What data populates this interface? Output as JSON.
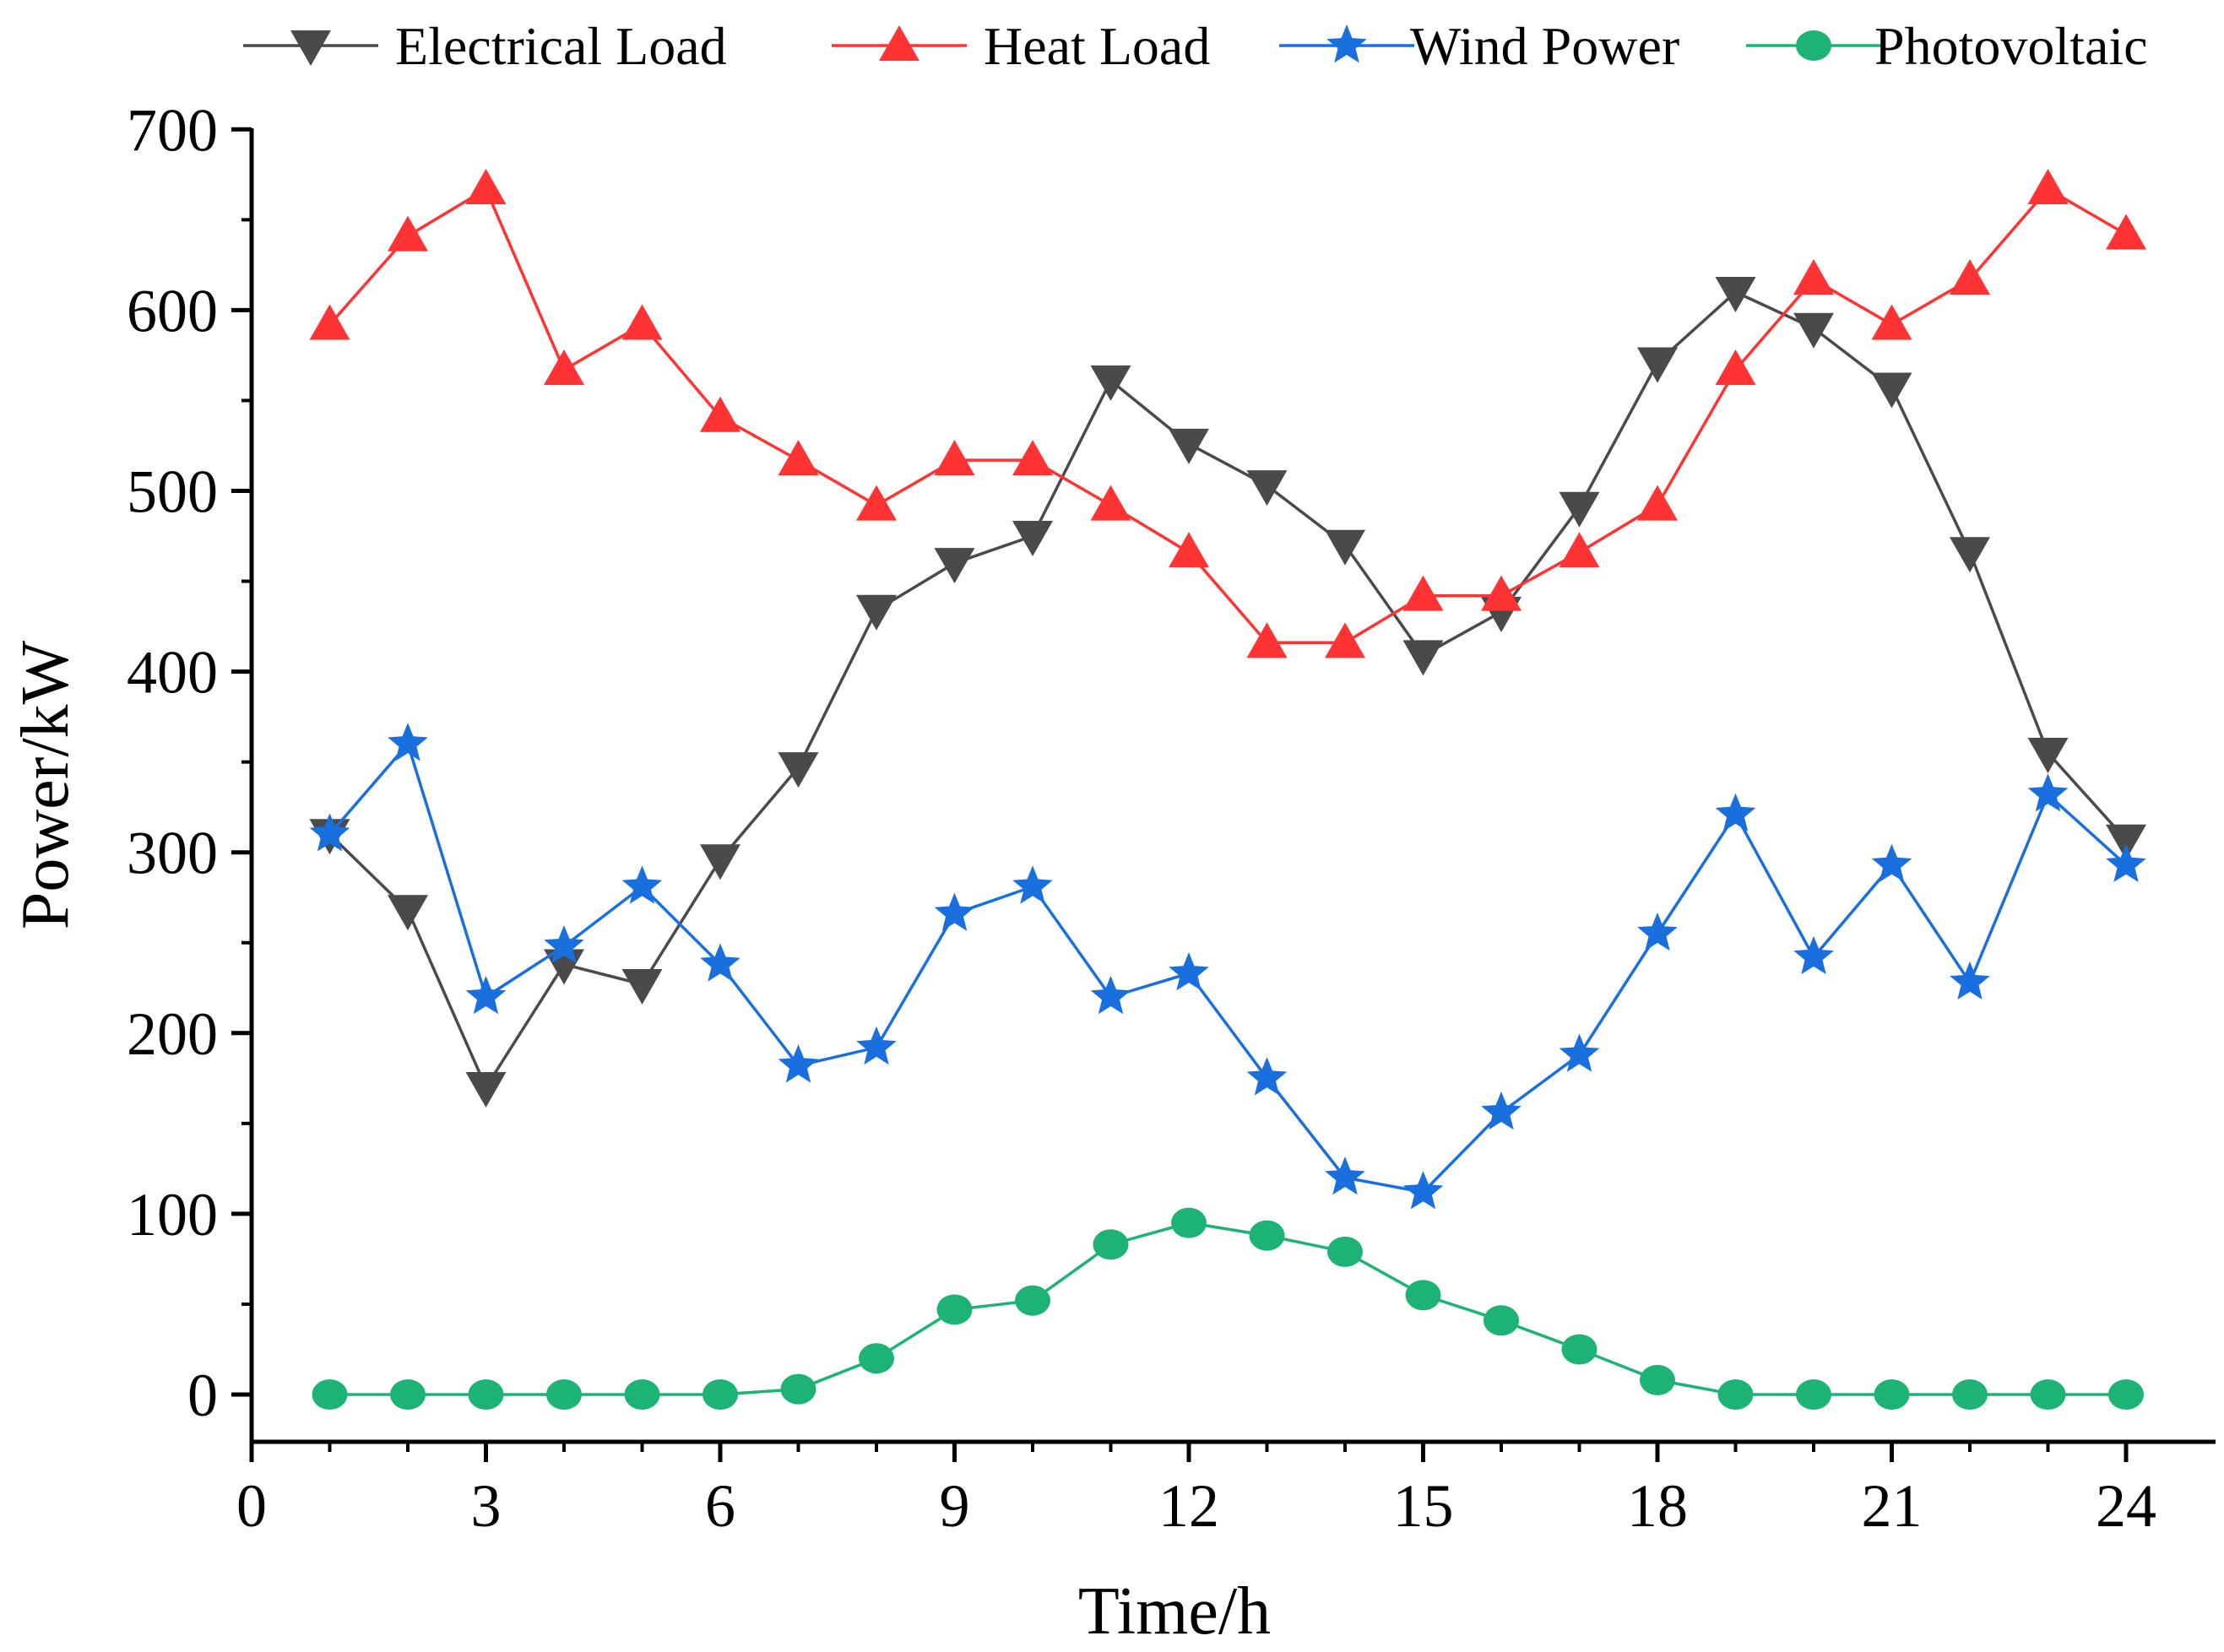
{
  "chart_data": {
    "type": "line",
    "xlabel": "Time/h",
    "ylabel": "Power/kW",
    "xlim": [
      0,
      25
    ],
    "ylim": [
      -25,
      700
    ],
    "xticks": [
      0,
      3,
      6,
      9,
      12,
      15,
      18,
      21,
      24
    ],
    "yticks": [
      0,
      100,
      200,
      300,
      400,
      500,
      600,
      700
    ],
    "grid": false,
    "legend_position": "top",
    "x": [
      1,
      2,
      3,
      4,
      5,
      6,
      7,
      8,
      9,
      10,
      11,
      12,
      13,
      14,
      15,
      16,
      17,
      18,
      19,
      20,
      21,
      22,
      23,
      24
    ],
    "series": [
      {
        "name": "Electrical Load",
        "color": "#4a4a4a",
        "marker": "triangle-down",
        "values": [
          310,
          268,
          170,
          238,
          227,
          296,
          347,
          434,
          460,
          475,
          561,
          526,
          503,
          470,
          409,
          433,
          491,
          571,
          610,
          590,
          557,
          466,
          355,
          307
        ]
      },
      {
        "name": "Heat Load",
        "color": "#ff3333",
        "marker": "triangle-up",
        "values": [
          592,
          641,
          667,
          567,
          592,
          541,
          517,
          492,
          517,
          517,
          492,
          466,
          416,
          416,
          442,
          442,
          466,
          492,
          567,
          617,
          592,
          617,
          667,
          642
        ]
      },
      {
        "name": "Wind Power",
        "color": "#1a6fdf",
        "marker": "star",
        "values": [
          310,
          360,
          220,
          248,
          281,
          238,
          182,
          192,
          266,
          281,
          220,
          233,
          175,
          120,
          112,
          156,
          188,
          255,
          321,
          242,
          293,
          228,
          332,
          293
        ]
      },
      {
        "name": "Photovoltaic",
        "color": "#1db374",
        "marker": "circle",
        "values": [
          0,
          0,
          0,
          0,
          0,
          0,
          3,
          20,
          47,
          52,
          83,
          95,
          88,
          79,
          55,
          41,
          25,
          8,
          0,
          0,
          0,
          0,
          0,
          0
        ]
      }
    ]
  }
}
